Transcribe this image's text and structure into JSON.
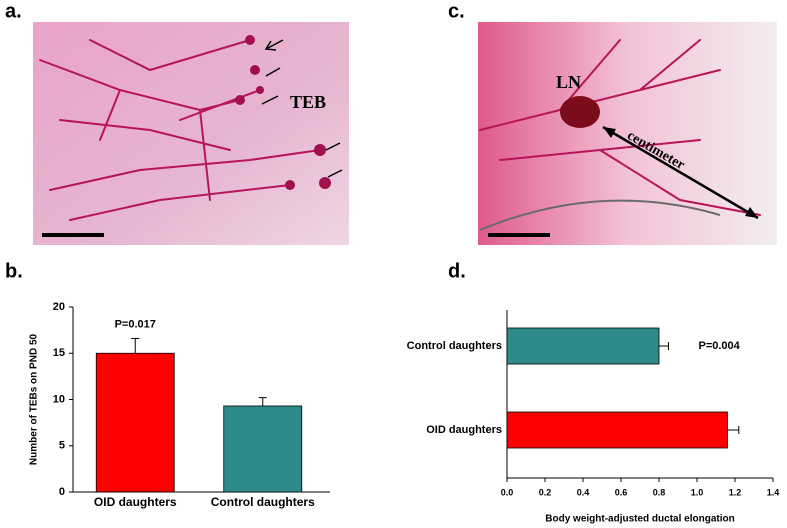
{
  "panel_labels": [
    "a.",
    "c.",
    "b.",
    "d."
  ],
  "photo_text": {
    "teb": "TEB",
    "ln": "LN",
    "centimeter": "centimeter"
  },
  "chart_data": [
    {
      "type": "bar",
      "categories": [
        "OID daughters",
        "Control daughters"
      ],
      "values": [
        15,
        9.3
      ],
      "errors": [
        1.6,
        0.9
      ],
      "colors": [
        "#ff0000",
        "#2e8b8b"
      ],
      "ylabel": "Number of TEBs on PND 50",
      "ylim": [
        0,
        20
      ],
      "yticks": [
        0,
        5,
        10,
        15,
        20
      ],
      "annotation": "P=0.017"
    },
    {
      "type": "barh",
      "categories": [
        "OID daughters",
        "Control daughters"
      ],
      "values": [
        1.16,
        0.8
      ],
      "errors": [
        0.06,
        0.05
      ],
      "colors": [
        "#ff0000",
        "#2e8b8b"
      ],
      "xlabel": "Body weight-adjusted ductal elongation",
      "xlim": [
        0,
        1.4
      ],
      "xticks": [
        {
          "value": 0,
          "label": "0.0"
        },
        0.2,
        0.4,
        0.6,
        0.8,
        {
          "value": 1,
          "label": "1.0"
        },
        1.2,
        1.4
      ],
      "annotation": "P=0.004"
    }
  ]
}
